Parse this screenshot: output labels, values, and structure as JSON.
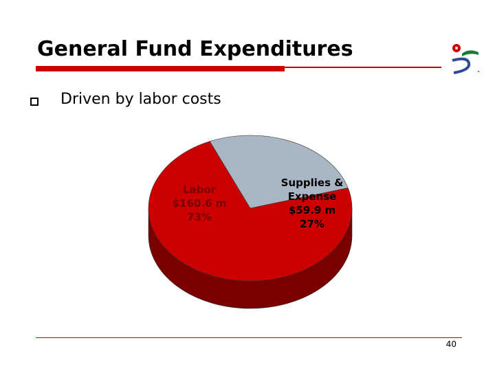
{
  "slide": {
    "title": "General Fund Expenditures",
    "bullet": "Driven by labor costs",
    "page_number": "40"
  },
  "logo": {
    "icon": "municipal-logo-icon",
    "colors": [
      "#cc0000",
      "#1a7a3a",
      "#2a4a9a"
    ]
  },
  "colors": {
    "accent": "#cc0000",
    "labor_top": "#cc0000",
    "labor_side": "#7a0000",
    "supplies_top": "#a9b6c4",
    "supplies_side": "#5e6670"
  },
  "chart_data": {
    "type": "pie",
    "title": "",
    "slices": [
      {
        "label": "Labor",
        "amount": "$160.6 m",
        "percent_label": "73%",
        "value": 73
      },
      {
        "label": "Supplies & Expense",
        "amount": "$59.9 m",
        "percent_label": "27%",
        "value": 27
      }
    ],
    "label_lines": [
      [
        "Labor",
        "$160.6 m",
        "73%"
      ],
      [
        "Supplies &",
        "Expense",
        "$59.9 m",
        "27%"
      ]
    ],
    "style": "3d-tilted"
  }
}
